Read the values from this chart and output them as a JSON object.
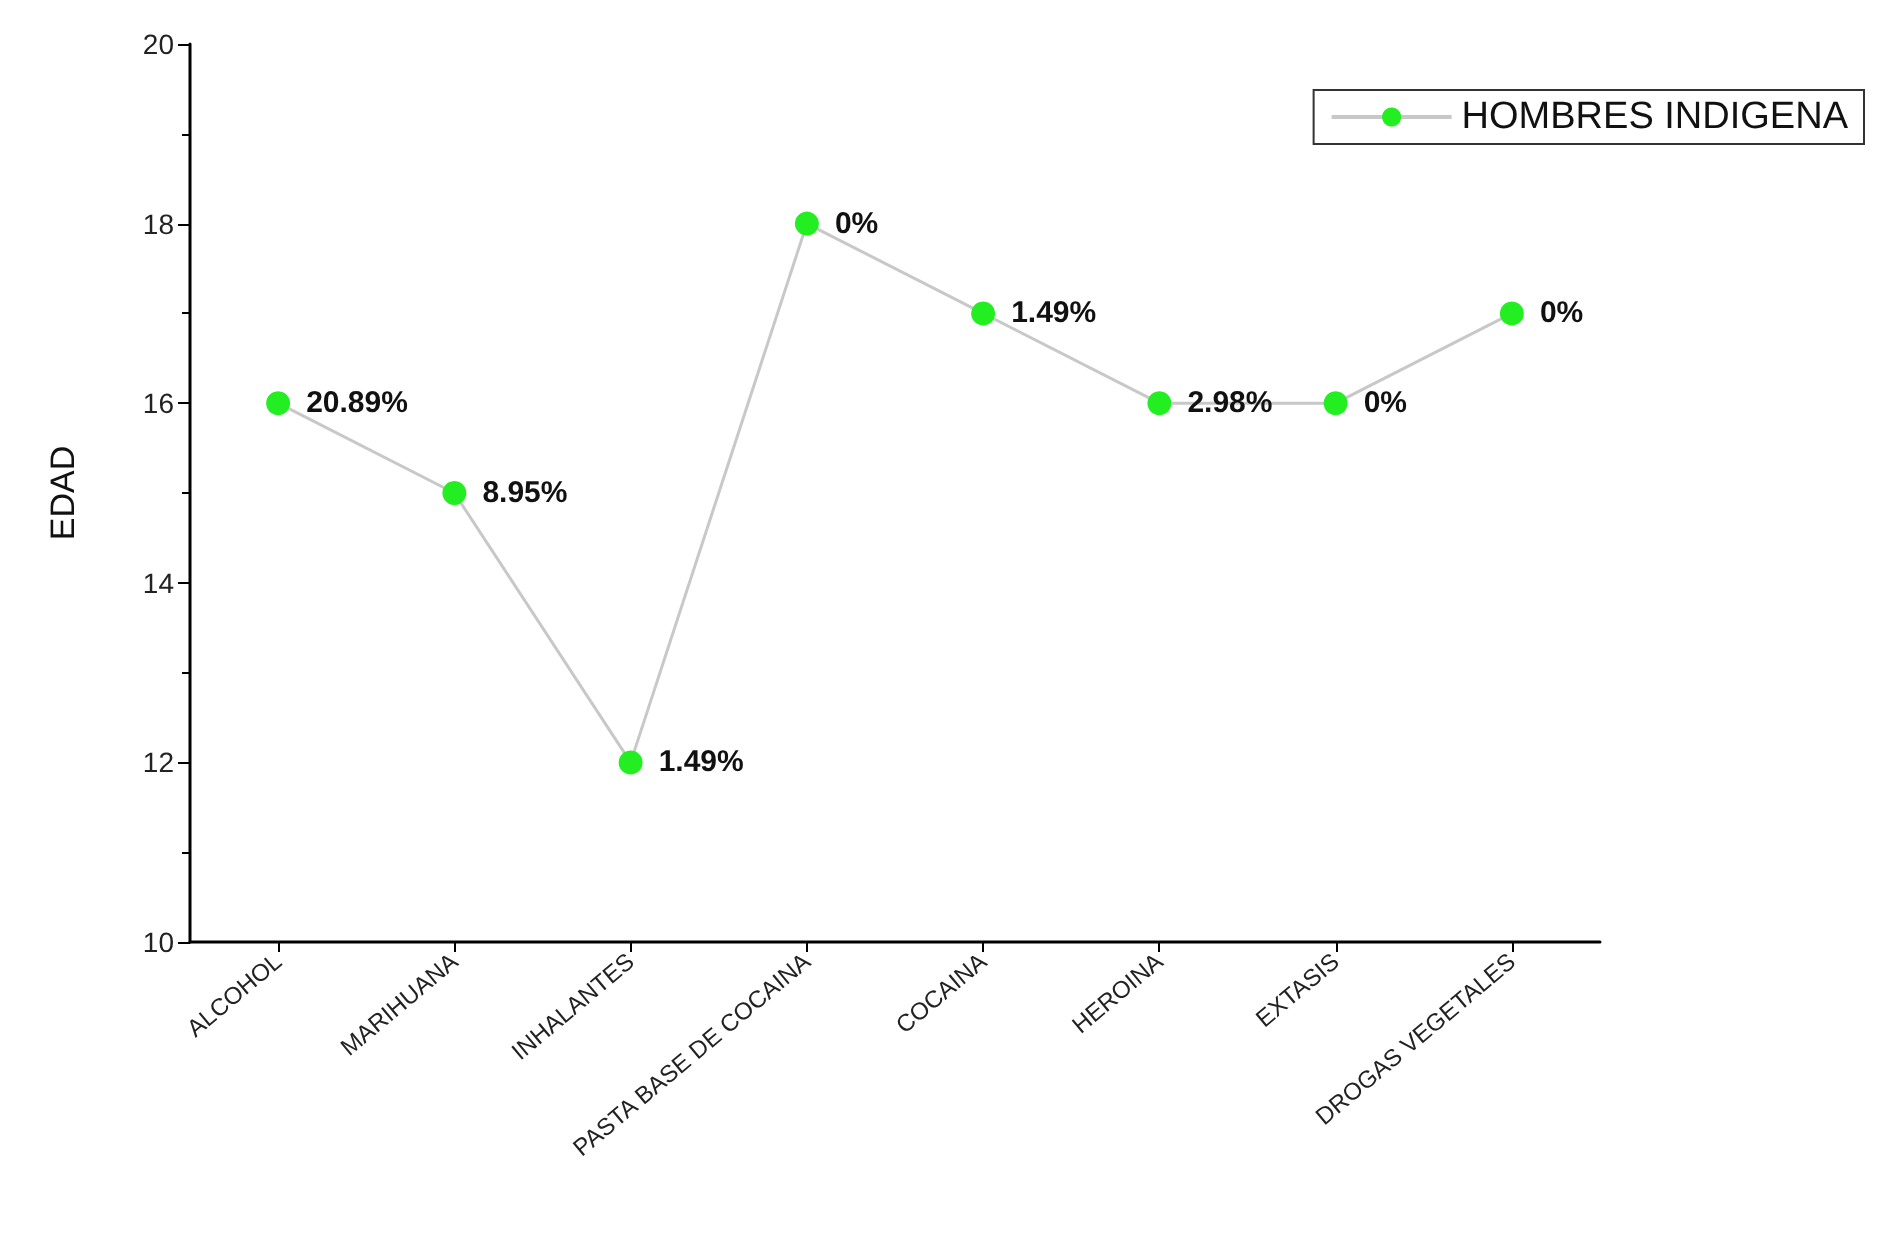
{
  "chart_data": {
    "type": "line",
    "ylabel": "EDAD",
    "categories": [
      "ALCOHOL",
      "MARIHUANA",
      "INHALANTES",
      "PASTA BASE DE COCAINA",
      "COCAINA",
      "HEROINA",
      "EXTASIS",
      "DROGAS VEGETALES"
    ],
    "series": [
      {
        "name": "HOMBRES INDIGENA",
        "color": "#22ee22",
        "values": [
          16,
          15,
          12,
          18,
          17,
          16,
          16,
          17
        ]
      }
    ],
    "annotations": [
      {
        "text": "20.89%",
        "x": "ALCOHOL",
        "y": 16
      },
      {
        "text": "8.95%",
        "x": "MARIHUANA",
        "y": 15
      },
      {
        "text": "1.49%",
        "x": "INHALANTES",
        "y": 12
      },
      {
        "text": "0%",
        "x": "PASTA BASE DE COCAINA",
        "y": 18
      },
      {
        "text": "1.49%",
        "x": "COCAINA",
        "y": 17
      },
      {
        "text": "2.98%",
        "x": "HEROINA",
        "y": 16
      },
      {
        "text": "0%",
        "x": "EXTASIS",
        "y": 16
      },
      {
        "text": "0%",
        "x": "DROGAS VEGETALES",
        "y": 17
      }
    ],
    "ylim": [
      10,
      20
    ],
    "yticks": [
      10,
      12,
      14,
      16,
      18,
      20
    ],
    "grid": false,
    "legend": "top right",
    "marker": "circle",
    "line_style": "solid"
  }
}
